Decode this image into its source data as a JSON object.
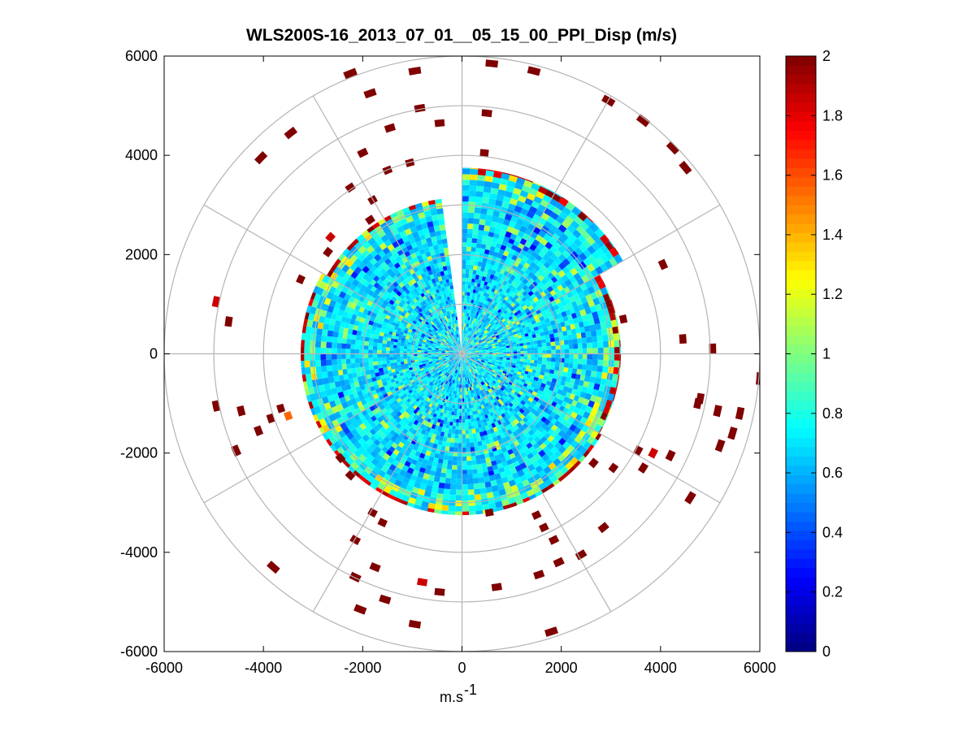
{
  "chart_data": {
    "type": "heatmap",
    "subtype": "polar-ppi",
    "title": "WLS200S-16_2013_07_01__05_15_00_PPI_Disp (m/s)",
    "xlabel": "m.s",
    "xlabel_superscript": "-1",
    "ylabel": "",
    "xlim": [
      -6000,
      6000
    ],
    "ylim": [
      -6000,
      6000
    ],
    "xticks": [
      "-6000",
      "-4000",
      "-2000",
      "0",
      "2000",
      "4000",
      "6000"
    ],
    "yticks": [
      "6000",
      "4000",
      "2000",
      "0",
      "-2000",
      "-4000",
      "-6000"
    ],
    "polar_grid": {
      "ring_radii": [
        1000,
        2000,
        3000,
        4000,
        5000,
        6000
      ],
      "spoke_angles_deg": [
        0,
        30,
        60,
        90,
        120,
        150,
        180,
        210,
        240,
        270,
        300,
        330
      ]
    },
    "colorbar": {
      "colormap": "jet",
      "range": [
        0,
        2
      ],
      "ticks": [
        "2",
        "1.8",
        "1.6",
        "1.4",
        "1.2",
        "1",
        "0.8",
        "0.6",
        "0.4",
        "0.2",
        "0"
      ]
    },
    "dense_region": {
      "range_min": 0,
      "range_max": 3250,
      "gap_azimuth_deg": [
        -7,
        0
      ],
      "outer_edge_range_by_sector": [
        {
          "az_from": 0,
          "az_to": 60,
          "range": 3750
        },
        {
          "az_from": 60,
          "az_to": 120,
          "range": 3200
        },
        {
          "az_from": 120,
          "az_to": 200,
          "range": 3250
        },
        {
          "az_from": 200,
          "az_to": 300,
          "range": 3250
        },
        {
          "az_from": 300,
          "az_to": 353,
          "range": 3150
        }
      ],
      "typical_value": 0.7,
      "outer_rim_value": 1.85
    },
    "sparse_returns": [
      {
        "x": -950,
        "y": 5700,
        "v": 2.0
      },
      {
        "x": -1850,
        "y": 5250,
        "v": 2.0
      },
      {
        "x": -2250,
        "y": 5650,
        "v": 2.0
      },
      {
        "x": -850,
        "y": 4950,
        "v": 2.0
      },
      {
        "x": -450,
        "y": 4650,
        "v": 2.0
      },
      {
        "x": -1450,
        "y": 4550,
        "v": 2.0
      },
      {
        "x": -3450,
        "y": 4450,
        "v": 2.0
      },
      {
        "x": -4050,
        "y": 3950,
        "v": 2.0
      },
      {
        "x": -2000,
        "y": 4050,
        "v": 2.0
      },
      {
        "x": -1500,
        "y": 3700,
        "v": 2.0
      },
      {
        "x": -2250,
        "y": 3350,
        "v": 2.0
      },
      {
        "x": -1800,
        "y": 3100,
        "v": 2.0
      },
      {
        "x": -1050,
        "y": 3850,
        "v": 2.0
      },
      {
        "x": -1850,
        "y": 2700,
        "v": 2.0
      },
      {
        "x": -2650,
        "y": 2350,
        "v": 1.85
      },
      {
        "x": -2700,
        "y": 2050,
        "v": 2.0
      },
      {
        "x": -3250,
        "y": 1500,
        "v": 2.0
      },
      {
        "x": -4950,
        "y": 1050,
        "v": 1.85
      },
      {
        "x": -4700,
        "y": 650,
        "v": 2.0
      },
      {
        "x": 600,
        "y": 5850,
        "v": 2.0
      },
      {
        "x": 1450,
        "y": 5700,
        "v": 2.0
      },
      {
        "x": 500,
        "y": 4850,
        "v": 2.0
      },
      {
        "x": 450,
        "y": 4050,
        "v": 2.0
      },
      {
        "x": 2950,
        "y": 5100,
        "v": 2.0
      },
      {
        "x": 3650,
        "y": 4700,
        "v": 2.0
      },
      {
        "x": 4250,
        "y": 4150,
        "v": 2.0
      },
      {
        "x": 4500,
        "y": 3750,
        "v": 2.0
      },
      {
        "x": 4050,
        "y": 1800,
        "v": 2.0
      },
      {
        "x": 3250,
        "y": 700,
        "v": 2.0
      },
      {
        "x": 4450,
        "y": 300,
        "v": 2.0
      },
      {
        "x": 5050,
        "y": 100,
        "v": 2.0
      },
      {
        "x": 6000,
        "y": -500,
        "v": 2.0
      },
      {
        "x": -4950,
        "y": -1050,
        "v": 2.0
      },
      {
        "x": -4450,
        "y": -1150,
        "v": 2.0
      },
      {
        "x": -3650,
        "y": -1100,
        "v": 2.0
      },
      {
        "x": -3850,
        "y": -1300,
        "v": 2.0
      },
      {
        "x": -4100,
        "y": -1550,
        "v": 2.0
      },
      {
        "x": -3500,
        "y": -1250,
        "v": 1.55
      },
      {
        "x": -4550,
        "y": -1950,
        "v": 2.0
      },
      {
        "x": 4800,
        "y": -900,
        "v": 2.0
      },
      {
        "x": 4750,
        "y": -1000,
        "v": 2.0
      },
      {
        "x": 5150,
        "y": -1150,
        "v": 2.0
      },
      {
        "x": 5600,
        "y": -1200,
        "v": 2.0
      },
      {
        "x": 5450,
        "y": -1600,
        "v": 2.0
      },
      {
        "x": 5200,
        "y": -1850,
        "v": 2.0
      },
      {
        "x": 3550,
        "y": -1950,
        "v": 2.0
      },
      {
        "x": 3850,
        "y": -2000,
        "v": 1.85
      },
      {
        "x": 3650,
        "y": -2300,
        "v": 2.0
      },
      {
        "x": 4200,
        "y": -2050,
        "v": 2.0
      },
      {
        "x": 4600,
        "y": -2900,
        "v": 2.0
      },
      {
        "x": 2650,
        "y": -2200,
        "v": 2.0
      },
      {
        "x": 3050,
        "y": -2300,
        "v": 2.0
      },
      {
        "x": 2850,
        "y": -3500,
        "v": 2.0
      },
      {
        "x": 1850,
        "y": -3750,
        "v": 2.0
      },
      {
        "x": 1950,
        "y": -4200,
        "v": 2.0
      },
      {
        "x": 1550,
        "y": -4450,
        "v": 2.0
      },
      {
        "x": 700,
        "y": -4700,
        "v": 2.0
      },
      {
        "x": 1800,
        "y": -5600,
        "v": 2.0
      },
      {
        "x": -1600,
        "y": -3400,
        "v": 2.0
      },
      {
        "x": -1800,
        "y": -3200,
        "v": 2.0
      },
      {
        "x": -2150,
        "y": -3750,
        "v": 2.0
      },
      {
        "x": -2450,
        "y": -2100,
        "v": 2.0
      },
      {
        "x": -2250,
        "y": -2450,
        "v": 2.0
      },
      {
        "x": -1750,
        "y": -4300,
        "v": 2.0
      },
      {
        "x": -2150,
        "y": -4500,
        "v": 2.0
      },
      {
        "x": -800,
        "y": -4600,
        "v": 1.85
      },
      {
        "x": -450,
        "y": -4800,
        "v": 2.0
      },
      {
        "x": -2050,
        "y": -5150,
        "v": 2.0
      },
      {
        "x": -1550,
        "y": -4950,
        "v": 2.0
      },
      {
        "x": -950,
        "y": -5450,
        "v": 2.0
      },
      {
        "x": -3800,
        "y": -4300,
        "v": 2.0
      },
      {
        "x": 1500,
        "y": -3250,
        "v": 2.0
      },
      {
        "x": 1650,
        "y": -3500,
        "v": 2.0
      },
      {
        "x": 550,
        "y": -3200,
        "v": 2.0
      },
      {
        "x": 2400,
        "y": -4050,
        "v": 2.0
      }
    ]
  }
}
